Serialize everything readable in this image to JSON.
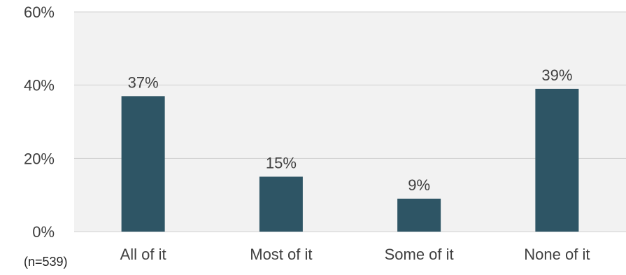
{
  "chart_data": {
    "type": "bar",
    "categories": [
      "All of it",
      "Most of it",
      "Some of it",
      "None of it"
    ],
    "values": [
      37,
      15,
      9,
      39
    ],
    "data_labels": [
      "37%",
      "15%",
      "9%",
      "39%"
    ],
    "yticks": [
      "0%",
      "20%",
      "40%",
      "60%"
    ],
    "ylim": [
      0,
      60
    ],
    "title": "",
    "xlabel": "",
    "ylabel": "",
    "grid": true,
    "legend": "none",
    "bar_color": "#2e5565",
    "plot_background": "#f2f2f2",
    "gridline_color": "#d0d0d0"
  },
  "note": "(n=539)"
}
